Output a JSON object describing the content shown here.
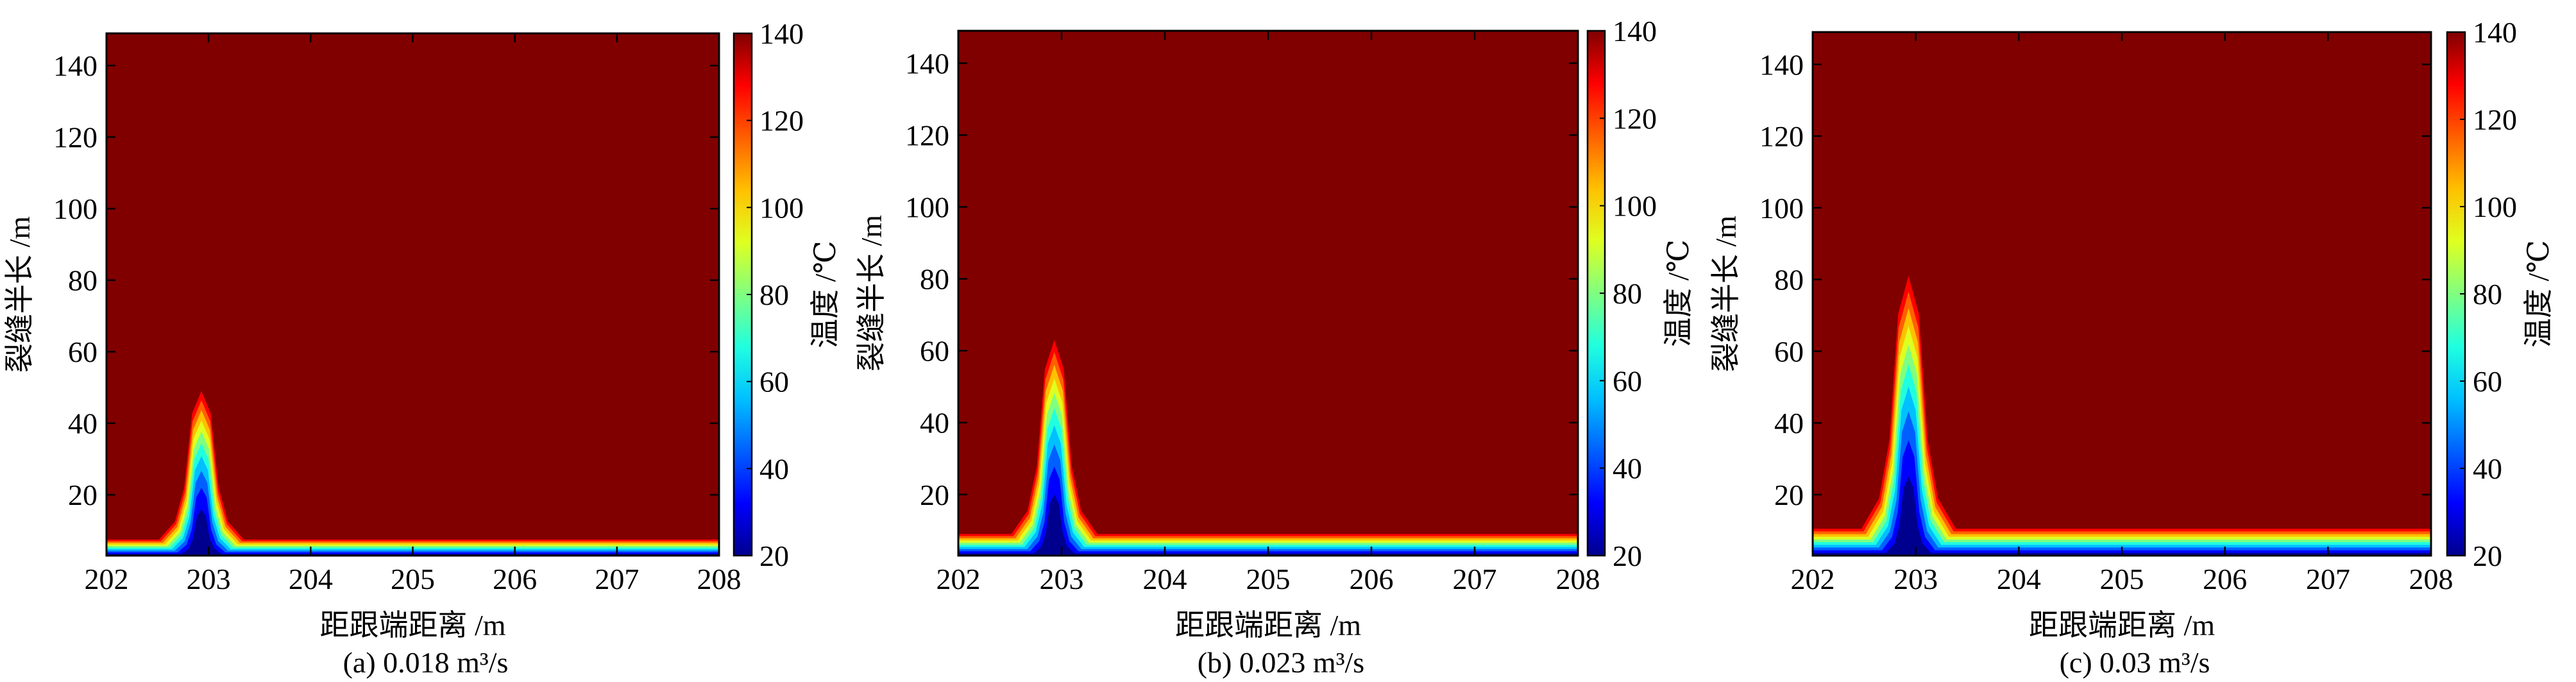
{
  "colormap": [
    "#00008f",
    "#0000ff",
    "#0060ff",
    "#00c0ff",
    "#20ffdf",
    "#80ff80",
    "#dfff20",
    "#ffc000",
    "#ff6000",
    "#ff0000",
    "#800000"
  ],
  "chart_data": [
    {
      "type": "contour",
      "xlabel": "距跟端距离 /m",
      "ylabel": "裂缝半长 /m",
      "caption": "(a) 0.018 m³/s",
      "xlim": [
        202,
        208
      ],
      "ylim": [
        3,
        149
      ],
      "xticks": [
        "202",
        "203",
        "204",
        "205",
        "206",
        "207",
        "208"
      ],
      "yticks": [
        "20",
        "40",
        "60",
        "80",
        "100",
        "120",
        "140"
      ],
      "colorbar": {
        "label": "温度 /℃",
        "range": [
          20,
          140
        ],
        "ticks": [
          "20",
          "40",
          "60",
          "80",
          "100",
          "120",
          "140"
        ]
      },
      "peak_x": 202.93,
      "peak_halfwidth": 0.1,
      "peak_height": 49,
      "base_height": 7.5
    },
    {
      "type": "contour",
      "xlabel": "距跟端距离 /m",
      "ylabel": "裂缝半长 /m",
      "caption": "(b) 0.023 m³/s",
      "xlim": [
        202,
        208
      ],
      "ylim": [
        3,
        149
      ],
      "xticks": [
        "202",
        "203",
        "204",
        "205",
        "206",
        "207",
        "208"
      ],
      "yticks": [
        "20",
        "40",
        "60",
        "80",
        "100",
        "120",
        "140"
      ],
      "colorbar": {
        "label": "温度 /℃",
        "range": [
          20,
          140
        ],
        "ticks": [
          "20",
          "40",
          "60",
          "80",
          "100",
          "120",
          "140"
        ]
      },
      "peak_x": 202.93,
      "peak_halfwidth": 0.1,
      "peak_height": 63,
      "base_height": 9
    },
    {
      "type": "contour",
      "xlabel": "距跟端距离 /m",
      "ylabel": "裂缝半长 /m",
      "caption": "(c) 0.03 m³/s",
      "xlim": [
        202,
        208
      ],
      "ylim": [
        3,
        149
      ],
      "xticks": [
        "202",
        "203",
        "204",
        "205",
        "206",
        "207",
        "208"
      ],
      "yticks": [
        "20",
        "40",
        "60",
        "80",
        "100",
        "120",
        "140"
      ],
      "colorbar": {
        "label": "温度 /℃",
        "range": [
          20,
          140
        ],
        "ticks": [
          "20",
          "40",
          "60",
          "80",
          "100",
          "120",
          "140"
        ]
      },
      "peak_x": 202.93,
      "peak_halfwidth": 0.11,
      "peak_height": 81,
      "base_height": 10.5
    }
  ]
}
